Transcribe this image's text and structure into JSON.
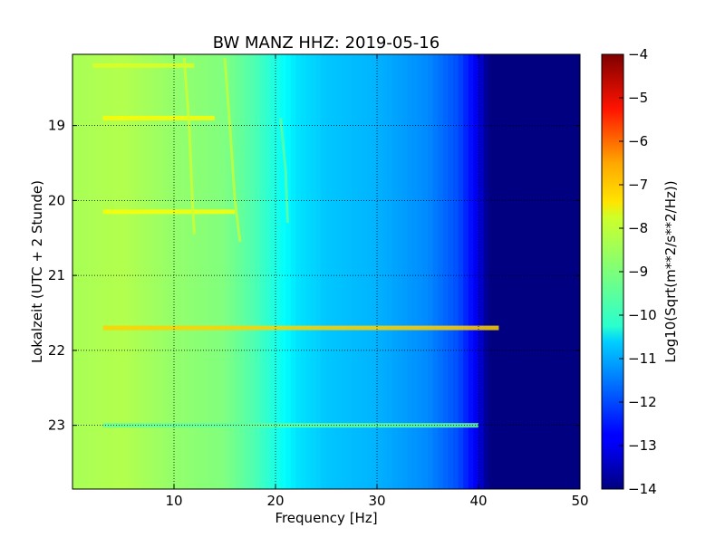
{
  "chart_data": {
    "type": "heatmap",
    "title": "BW MANZ HHZ: 2019-05-16",
    "xlabel": "Frequency [Hz]",
    "ylabel": "Lokalzeit (UTC + 2 Stunde)",
    "xlim": [
      0,
      50
    ],
    "ylim": [
      23.85,
      18.05
    ],
    "x_ticks": [
      10,
      20,
      30,
      40,
      50
    ],
    "y_ticks": [
      19,
      20,
      21,
      22,
      23
    ],
    "grid": true,
    "colormap": "jet",
    "colorbar": {
      "label": "Log10(Sqrt(m**2/s**2/Hz))",
      "range": [
        -14,
        -4
      ],
      "ticks": [
        -4,
        -5,
        -6,
        -7,
        -8,
        -9,
        -10,
        -11,
        -12,
        -13,
        -14
      ]
    },
    "spectrum_profile": {
      "frequency_hz": [
        0,
        5,
        10,
        15,
        18,
        20,
        22,
        25,
        30,
        35,
        38,
        40,
        41,
        50
      ],
      "level": [
        -8.6,
        -8.5,
        -8.8,
        -9.0,
        -9.5,
        -10.0,
        -10.5,
        -10.8,
        -11.0,
        -11.4,
        -12.0,
        -13.0,
        -14.0,
        -14.0
      ]
    },
    "bright_bands": [
      {
        "time": 18.2,
        "f_from": 2,
        "f_to": 12,
        "level": -8.1
      },
      {
        "time": 18.9,
        "f_from": 3,
        "f_to": 14,
        "level": -7.7
      },
      {
        "time": 20.15,
        "f_from": 3,
        "f_to": 16,
        "level": -7.8
      },
      {
        "time": 21.7,
        "f_from": 3,
        "f_to": 42,
        "level": -7.3
      },
      {
        "time": 23.0,
        "f_from": 3,
        "f_to": 40,
        "level": -9.3
      }
    ],
    "drifting_lines": [
      {
        "points": [
          [
            11.0,
            18.1
          ],
          [
            11.5,
            19.0
          ],
          [
            11.8,
            20.0
          ],
          [
            12.0,
            20.45
          ]
        ],
        "level": -8.2
      },
      {
        "points": [
          [
            15.0,
            18.1
          ],
          [
            15.5,
            19.0
          ],
          [
            16.0,
            20.0
          ],
          [
            16.5,
            20.55
          ]
        ],
        "level": -8.3
      },
      {
        "points": [
          [
            20.5,
            18.9
          ],
          [
            21.0,
            19.6
          ],
          [
            21.2,
            20.3
          ]
        ],
        "level": -9.3
      }
    ]
  }
}
